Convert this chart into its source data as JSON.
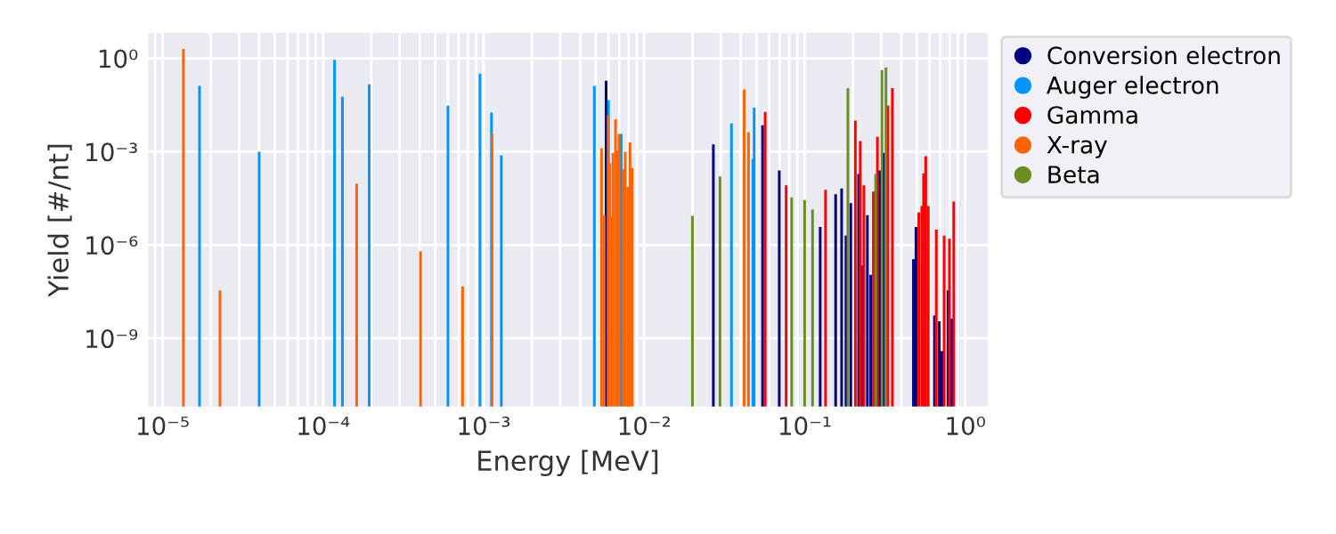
{
  "chart_data": {
    "type": "bar",
    "xlabel": "Energy [MeV]",
    "ylabel": "Yield [#/nt]",
    "log": "xy",
    "grid": true,
    "legend": "right",
    "marker": "circle",
    "xlim": [
      8e-06,
      1.4
    ],
    "ylim": [
      6e-12,
      7
    ],
    "xticks": [
      {
        "value": 1e-05,
        "label": "10⁻⁵"
      },
      {
        "value": 0.0001,
        "label": "10⁻⁴"
      },
      {
        "value": 0.001,
        "label": "10⁻³"
      },
      {
        "value": 0.01,
        "label": "10⁻²"
      },
      {
        "value": 0.1,
        "label": "10⁻¹"
      },
      {
        "value": 1,
        "label": "10⁰"
      }
    ],
    "yticks": [
      {
        "value": 1e-09,
        "label": "10⁻⁹"
      },
      {
        "value": 1e-06,
        "label": "10⁻⁶"
      },
      {
        "value": 0.001,
        "label": "10⁻³"
      },
      {
        "value": 1,
        "label": "10⁰"
      }
    ],
    "series": [
      {
        "name": "Conversion electron",
        "color": "#000080",
        "x": [
          0.0058,
          0.027,
          0.0547,
          0.0695,
          0.125,
          0.156,
          0.17,
          0.181,
          0.194,
          0.217,
          0.228,
          0.246,
          0.258,
          0.293,
          0.31,
          0.476,
          0.494,
          0.644,
          0.69,
          0.716,
          0.782,
          0.824
        ],
        "values": [
          0.19,
          0.0017,
          0.0071,
          0.00025,
          3.8e-06,
          4.3e-05,
          6.6e-05,
          2e-06,
          2.2e-05,
          0.00019,
          2.2e-07,
          9.1e-06,
          1.1e-07,
          0.00025,
          0.00091,
          3.5e-07,
          3.8e-06,
          5.4e-09,
          3.5e-09,
          3.9e-10,
          3.5e-08,
          4.3e-09
        ]
      },
      {
        "name": "Auger electron",
        "color": "#0095ff",
        "x": [
          1.7e-05,
          4e-05,
          0.000118,
          0.000132,
          0.000194,
          0.0006,
          0.00095,
          0.00112,
          0.00129,
          0.0049,
          0.006,
          0.0072,
          0.035,
          0.0476,
          0.0485
        ],
        "values": [
          0.13,
          0.001,
          0.9,
          0.058,
          0.145,
          0.03,
          0.32,
          0.018,
          0.00076,
          0.13,
          0.045,
          0.0037,
          0.0081,
          0.00058,
          0.026
        ]
      },
      {
        "name": "Gamma",
        "color": "#ff0000",
        "x": [
          0.0568,
          0.0767,
          0.135,
          0.207,
          0.222,
          0.234,
          0.268,
          0.284,
          0.33,
          0.352,
          0.514,
          0.537,
          0.551,
          0.568,
          0.589,
          0.661,
          0.74,
          0.798,
          0.849
        ],
        "values": [
          0.019,
          8.3e-05,
          5.9e-05,
          0.01,
          0.0022,
          8.3e-05,
          5.2e-05,
          0.003,
          0.03,
          0.11,
          1.1e-05,
          1.8e-05,
          0.0002,
          0.00072,
          1.8e-05,
          3.1e-06,
          2e-06,
          1.6e-06,
          2.5e-05
        ]
      },
      {
        "name": "X-ray",
        "color": "#ff6400",
        "x": [
          1.35e-05,
          2.28e-05,
          0.000162,
          0.000405,
          0.00074,
          0.00113,
          0.00543,
          0.00564,
          0.00597,
          0.00612,
          0.00624,
          0.0064,
          0.00664,
          0.00681,
          0.00698,
          0.00743,
          0.00763,
          0.00791,
          0.00817,
          0.00843,
          0.042,
          0.0447
        ],
        "values": [
          2.0,
          3.5e-08,
          9.3e-05,
          6.3e-07,
          4.6e-08,
          0.0037,
          0.0013,
          9.1e-06,
          0.015,
          0.00042,
          7.9e-06,
          0.00091,
          0.011,
          0.0011,
          0.0037,
          0.00027,
          0.001,
          7.4e-05,
          0.002,
          0.0003,
          0.1,
          0.0042
        ]
      },
      {
        "name": "Beta",
        "color": "#6b8e23",
        "x": [
          0.02,
          0.0297,
          0.083,
          0.1,
          0.112,
          0.186,
          0.277,
          0.303,
          0.321
        ],
        "values": [
          8.7e-06,
          0.00016,
          3.4e-05,
          2.8e-05,
          1.4e-05,
          0.11,
          0.00019,
          0.42,
          0.51
        ]
      }
    ]
  }
}
